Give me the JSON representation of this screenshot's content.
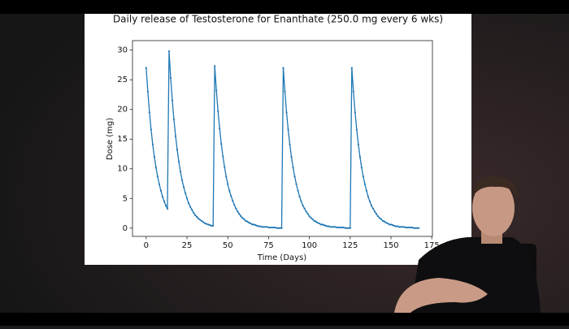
{
  "chart_data": {
    "type": "line",
    "title": "Daily release of Testosterone for Enanthate (250.0 mg every 6 wks)",
    "xlabel": "Time (Days)",
    "ylabel": "Dose (mg)",
    "xlim": [
      -8.4,
      175.4
    ],
    "ylim": [
      -1.4,
      31.6
    ],
    "xticks": [
      0,
      25,
      50,
      75,
      100,
      125,
      150,
      175
    ],
    "yticks": [
      0,
      5,
      10,
      15,
      20,
      25,
      30
    ],
    "grid": false,
    "marker": true,
    "x": [
      0,
      1,
      2,
      3,
      4,
      5,
      6,
      7,
      8,
      9,
      10,
      11,
      12,
      13,
      14,
      15,
      16,
      17,
      18,
      19,
      20,
      21,
      22,
      23,
      24,
      25,
      26,
      27,
      28,
      29,
      30,
      31,
      32,
      33,
      34,
      35,
      36,
      37,
      38,
      39,
      40,
      41,
      42,
      43,
      44,
      45,
      46,
      47,
      48,
      49,
      50,
      51,
      52,
      53,
      54,
      55,
      56,
      57,
      58,
      59,
      60,
      61,
      62,
      63,
      64,
      65,
      66,
      67,
      68,
      69,
      70,
      71,
      72,
      73,
      74,
      75,
      76,
      77,
      78,
      79,
      80,
      81,
      82,
      83,
      84,
      85,
      86,
      87,
      88,
      89,
      90,
      91,
      92,
      93,
      94,
      95,
      96,
      97,
      98,
      99,
      100,
      101,
      102,
      103,
      104,
      105,
      106,
      107,
      108,
      109,
      110,
      111,
      112,
      113,
      114,
      115,
      116,
      117,
      118,
      119,
      120,
      121,
      122,
      123,
      124,
      125,
      126,
      127,
      128,
      129,
      130,
      131,
      132,
      133,
      134,
      135,
      136,
      137,
      138,
      139,
      140,
      141,
      142,
      143,
      144,
      145,
      146,
      147,
      148,
      149,
      150,
      151,
      152,
      153,
      154,
      155,
      156,
      157,
      158,
      159,
      160,
      161,
      162,
      163,
      164,
      165,
      166,
      167
    ],
    "series": [
      {
        "name": "Dose",
        "color": "#1f77b4",
        "values": [
          27.0,
          23.0,
          19.5,
          16.6,
          14.1,
          12.0,
          10.2,
          8.7,
          7.4,
          6.3,
          5.3,
          4.5,
          3.8,
          3.3,
          29.8,
          25.3,
          21.5,
          18.3,
          15.5,
          13.2,
          11.2,
          9.5,
          8.1,
          6.9,
          5.9,
          5.0,
          4.2,
          3.6,
          3.1,
          2.6,
          2.2,
          1.9,
          1.6,
          1.4,
          1.2,
          1.0,
          0.8,
          0.7,
          0.6,
          0.5,
          0.4,
          0.4,
          27.3,
          23.2,
          19.7,
          16.8,
          14.2,
          12.1,
          10.3,
          8.7,
          7.4,
          6.3,
          5.4,
          4.6,
          3.9,
          3.3,
          2.8,
          2.4,
          2.0,
          1.7,
          1.5,
          1.2,
          1.1,
          0.9,
          0.8,
          0.6,
          0.6,
          0.5,
          0.4,
          0.3,
          0.3,
          0.2,
          0.2,
          0.2,
          0.2,
          0.1,
          0.1,
          0.1,
          0.1,
          0.1,
          0.0,
          0.0,
          0.0,
          0.0,
          27.0,
          23.0,
          19.5,
          16.6,
          14.1,
          12.0,
          10.2,
          8.7,
          7.4,
          6.3,
          5.3,
          4.5,
          3.8,
          3.3,
          2.8,
          2.4,
          2.0,
          1.7,
          1.5,
          1.2,
          1.1,
          0.9,
          0.8,
          0.6,
          0.6,
          0.5,
          0.4,
          0.3,
          0.3,
          0.2,
          0.2,
          0.2,
          0.2,
          0.1,
          0.1,
          0.1,
          0.1,
          0.1,
          0.0,
          0.0,
          0.0,
          0.0,
          27.0,
          23.0,
          19.5,
          16.6,
          14.1,
          12.0,
          10.2,
          8.7,
          7.4,
          6.3,
          5.3,
          4.5,
          3.8,
          3.3,
          2.8,
          2.4,
          2.0,
          1.7,
          1.5,
          1.2,
          1.1,
          0.9,
          0.8,
          0.6,
          0.6,
          0.5,
          0.4,
          0.3,
          0.3,
          0.2,
          0.2,
          0.2,
          0.2,
          0.1,
          0.1,
          0.1,
          0.1,
          0.1,
          0.0,
          0.0,
          0.0,
          0.0
        ]
      }
    ]
  }
}
